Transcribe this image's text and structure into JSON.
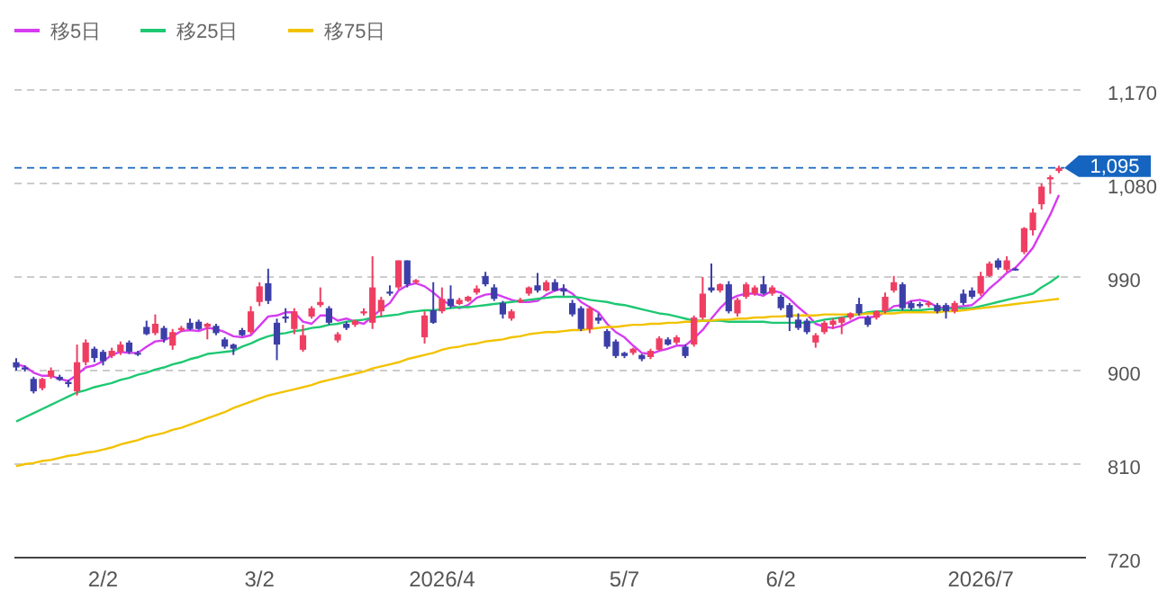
{
  "chart_data": {
    "type": "candlestick",
    "categories": [
      null,
      null,
      null,
      null,
      null,
      null,
      null,
      null,
      null,
      null,
      "2/2",
      null,
      null,
      null,
      null,
      null,
      null,
      null,
      null,
      null,
      null,
      null,
      null,
      null,
      null,
      null,
      null,
      null,
      "3/2",
      null,
      null,
      null,
      null,
      null,
      null,
      null,
      null,
      null,
      null,
      null,
      null,
      null,
      null,
      null,
      null,
      null,
      null,
      null,
      null,
      "2026/4",
      null,
      null,
      null,
      null,
      null,
      null,
      null,
      null,
      null,
      null,
      null,
      null,
      null,
      null,
      null,
      null,
      null,
      null,
      null,
      null,
      "5/7",
      null,
      null,
      null,
      null,
      null,
      null,
      null,
      null,
      null,
      null,
      null,
      null,
      null,
      null,
      null,
      null,
      null,
      "6/2",
      null,
      null,
      null,
      null,
      null,
      null,
      null,
      null,
      null,
      null,
      null,
      null,
      null,
      null,
      null,
      null,
      null,
      null,
      null,
      null,
      null,
      null,
      "2026/7",
      null,
      null,
      null,
      null,
      null,
      null,
      null,
      null,
      null
    ],
    "series": [
      {
        "colors": [
          "#3d3fa8",
          "#3d3fa8",
          "#3d3fa8",
          "#ef3e62",
          "#ef3e62",
          "#3d3fa8",
          "#3d3fa8",
          "#ef3e62",
          "#ef3e62",
          "#3d3fa8",
          "#3d3fa8",
          "#ef3e62",
          "#ef3e62",
          "#3d3fa8",
          "#3d3fa8",
          "#3d3fa8",
          "#ef3e62",
          "#3d3fa8",
          "#ef3e62",
          "#ef3e62",
          "#3d3fa8",
          "#3d3fa8",
          "#ef3e62",
          "#3d3fa8",
          "#3d3fa8",
          "#3d3fa8",
          "#3d3fa8",
          "#ef3e62",
          "#ef3e62",
          "#3d3fa8",
          "#3d3fa8",
          "#3d3fa8",
          "#ef3e62",
          "#ef3e62",
          "#ef3e62",
          "#ef3e62",
          "#3d3fa8",
          "#ef3e62",
          "#3d3fa8",
          "#ef3e62",
          "#ef3e62",
          "#ef3e62",
          "#ef3e62",
          "#3d3fa8",
          "#ef3e62",
          "#3d3fa8",
          "#ef3e62",
          "#ef3e62",
          "#3d3fa8",
          "#ef3e62",
          "#3d3fa8",
          "#ef3e62",
          "#ef3e62",
          "#ef3e62",
          "#3d3fa8",
          "#3d3fa8",
          "#3d3fa8",
          "#ef3e62",
          "#ef3e62",
          "#ef3e62",
          "#3d3fa8",
          "#ef3e62",
          "#3d3fa8",
          "#3d3fa8",
          "#3d3fa8",
          "#3d3fa8",
          "#ef3e62",
          "#3d3fa8",
          "#3d3fa8",
          "#3d3fa8",
          "#3d3fa8",
          "#ef3e62",
          "#3d3fa8",
          "#ef3e62",
          "#ef3e62",
          "#3d3fa8",
          "#ef3e62",
          "#3d3fa8",
          "#ef3e62",
          "#ef3e62",
          "#3d3fa8",
          "#ef3e62",
          "#3d3fa8",
          "#ef3e62",
          "#ef3e62",
          "#ef3e62",
          "#3d3fa8",
          "#ef3e62",
          "#3d3fa8",
          "#3d3fa8",
          "#3d3fa8",
          "#3d3fa8",
          "#ef3e62",
          "#ef3e62",
          "#ef3e62",
          "#ef3e62",
          "#ef3e62",
          "#3d3fa8",
          "#3d3fa8",
          "#ef3e62",
          "#ef3e62",
          "#ef3e62",
          "#3d3fa8",
          "#3d3fa8",
          "#3d3fa8",
          "#ef3e62",
          "#3d3fa8",
          "#3d3fa8",
          "#ef3e62",
          "#3d3fa8",
          "#3d3fa8",
          "#ef3e62",
          "#ef3e62",
          "#3d3fa8",
          "#ef3e62",
          "#3d3fa8",
          "#ef3e62",
          "#ef3e62",
          "#ef3e62",
          "#ef3e62",
          "#ef3e62"
        ],
        "ohlc": [
          [
            908,
            912,
            900,
            903
          ],
          [
            903,
            905,
            899,
            901
          ],
          [
            892,
            894,
            878,
            880
          ],
          [
            883,
            893,
            881,
            892
          ],
          [
            894,
            903,
            892,
            900
          ],
          [
            894,
            896,
            890,
            891
          ],
          [
            889,
            891,
            884,
            887
          ],
          [
            880,
            925,
            876,
            908
          ],
          [
            908,
            930,
            905,
            927
          ],
          [
            921,
            923,
            908,
            912
          ],
          [
            918,
            920,
            905,
            909
          ],
          [
            914,
            922,
            912,
            919
          ],
          [
            918,
            928,
            915,
            925
          ],
          [
            927,
            929,
            916,
            918
          ],
          [
            917,
            919,
            914,
            916
          ],
          [
            942,
            948,
            934,
            935
          ],
          [
            936,
            954,
            934,
            945
          ],
          [
            941,
            943,
            927,
            930
          ],
          [
            924,
            940,
            920,
            937
          ],
          [
            939,
            943,
            937,
            941
          ],
          [
            946,
            950,
            939,
            940
          ],
          [
            947,
            949,
            939,
            940
          ],
          [
            942,
            946,
            930,
            945
          ],
          [
            943,
            945,
            934,
            936
          ],
          [
            930,
            932,
            921,
            923
          ],
          [
            925,
            926,
            915,
            921
          ],
          [
            939,
            941,
            933,
            934
          ],
          [
            937,
            962,
            935,
            957
          ],
          [
            966,
            985,
            962,
            981
          ],
          [
            984,
            998,
            964,
            967
          ],
          [
            946,
            950,
            910,
            925
          ],
          [
            952,
            960,
            946,
            950
          ],
          [
            940,
            960,
            935,
            957
          ],
          [
            920,
            944,
            918,
            934
          ],
          [
            952,
            962,
            950,
            960
          ],
          [
            963,
            980,
            961,
            966
          ],
          [
            960,
            962,
            944,
            946
          ],
          [
            929,
            937,
            927,
            935
          ],
          [
            945,
            947,
            939,
            941
          ],
          [
            944,
            949,
            942,
            948
          ],
          [
            955,
            960,
            953,
            957
          ],
          [
            946,
            1010,
            940,
            980
          ],
          [
            957,
            971,
            952,
            968
          ],
          [
            976,
            982,
            972,
            974
          ],
          [
            980,
            1006,
            978,
            1006
          ],
          [
            1006,
            1006,
            980,
            983
          ],
          [
            985,
            988,
            983,
            987
          ],
          [
            932,
            957,
            926,
            953
          ],
          [
            958,
            985,
            945,
            946
          ],
          [
            957,
            980,
            955,
            969
          ],
          [
            969,
            982,
            960,
            962
          ],
          [
            964,
            970,
            963,
            968
          ],
          [
            967,
            972,
            966,
            971
          ],
          [
            975,
            982,
            973,
            979
          ],
          [
            991,
            995,
            981,
            983
          ],
          [
            980,
            983,
            967,
            969
          ],
          [
            965,
            967,
            950,
            954
          ],
          [
            950,
            959,
            948,
            957
          ],
          [
            966,
            970,
            965,
            968
          ],
          [
            974,
            981,
            972,
            980
          ],
          [
            982,
            994,
            975,
            977
          ],
          [
            977,
            987,
            976,
            985
          ],
          [
            985,
            988,
            976,
            977
          ],
          [
            979,
            983,
            972,
            976
          ],
          [
            965,
            968,
            952,
            954
          ],
          [
            960,
            962,
            938,
            940
          ],
          [
            940,
            962,
            936,
            960
          ],
          [
            951,
            955,
            945,
            948
          ],
          [
            938,
            940,
            921,
            923
          ],
          [
            928,
            930,
            912,
            914
          ],
          [
            917,
            918,
            912,
            914
          ],
          [
            917,
            922,
            915,
            921
          ],
          [
            915,
            916,
            909,
            911
          ],
          [
            913,
            921,
            911,
            919
          ],
          [
            920,
            933,
            919,
            931
          ],
          [
            930,
            932,
            924,
            925
          ],
          [
            927,
            934,
            925,
            932
          ],
          [
            923,
            925,
            912,
            914
          ],
          [
            925,
            953,
            923,
            951
          ],
          [
            951,
            990,
            949,
            974
          ],
          [
            980,
            1003,
            975,
            977
          ],
          [
            977,
            984,
            975,
            983
          ],
          [
            983,
            986,
            955,
            957
          ],
          [
            955,
            970,
            952,
            968
          ],
          [
            971,
            985,
            969,
            983
          ],
          [
            974,
            982,
            972,
            980
          ],
          [
            983,
            991,
            973,
            974
          ],
          [
            974,
            982,
            972,
            980
          ],
          [
            971,
            973,
            958,
            960
          ],
          [
            963,
            965,
            938,
            951
          ],
          [
            949,
            955,
            939,
            941
          ],
          [
            948,
            950,
            935,
            937
          ],
          [
            927,
            936,
            922,
            934
          ],
          [
            937,
            948,
            935,
            946
          ],
          [
            944,
            950,
            940,
            948
          ],
          [
            946,
            952,
            935,
            951
          ],
          [
            951,
            956,
            949,
            955
          ],
          [
            964,
            970,
            953,
            955
          ],
          [
            951,
            953,
            942,
            944
          ],
          [
            951,
            958,
            949,
            957
          ],
          [
            957,
            975,
            955,
            971
          ],
          [
            977,
            991,
            975,
            985
          ],
          [
            983,
            985,
            958,
            960
          ],
          [
            965,
            967,
            958,
            960
          ],
          [
            964,
            966,
            960,
            962
          ],
          [
            963,
            967,
            961,
            965
          ],
          [
            963,
            965,
            955,
            957
          ],
          [
            963,
            965,
            950,
            957
          ],
          [
            957,
            967,
            955,
            965
          ],
          [
            974,
            978,
            963,
            965
          ],
          [
            977,
            980,
            969,
            971
          ],
          [
            974,
            995,
            972,
            991
          ],
          [
            991,
            1005,
            990,
            1003
          ],
          [
            1006,
            1008,
            997,
            999
          ],
          [
            997,
            1010,
            995,
            1006
          ],
          [
            998,
            999,
            996,
            997
          ],
          [
            1014,
            1038,
            1012,
            1037
          ],
          [
            1035,
            1056,
            1030,
            1052
          ],
          [
            1060,
            1080,
            1055,
            1077
          ],
          [
            1084,
            1088,
            1070,
            1086
          ],
          [
            1092,
            1097,
            1090,
            1095
          ]
        ]
      },
      {
        "type": "line",
        "name": "移5日",
        "color": "#d63cf0",
        "values": [
          906,
          904,
          898,
          895,
          895,
          892,
          890,
          896,
          903,
          905,
          909,
          915,
          918,
          917,
          917,
          923,
          928,
          929,
          933,
          938,
          939,
          938,
          941,
          940,
          937,
          933,
          932,
          934,
          943,
          952,
          953,
          956,
          956,
          947,
          945,
          953,
          953,
          948,
          950,
          947,
          945,
          952,
          959,
          965,
          977,
          982,
          984,
          981,
          975,
          968,
          963,
          960,
          963,
          970,
          973,
          974,
          971,
          968,
          966,
          966,
          967,
          973,
          977,
          979,
          974,
          966,
          961,
          956,
          945,
          937,
          932,
          924,
          917,
          916,
          919,
          921,
          924,
          924,
          931,
          939,
          950,
          960,
          968,
          972,
          974,
          974,
          972,
          977,
          975,
          969,
          961,
          954,
          945,
          942,
          941,
          943,
          947,
          951,
          951,
          952,
          956,
          962,
          963,
          967,
          968,
          966,
          961,
          960,
          961,
          962,
          963,
          970,
          979,
          986,
          994,
          999,
          1008,
          1018,
          1034,
          1050,
          1069
        ]
      },
      {
        "type": "line",
        "name": "移25日",
        "color": "#1ec872",
        "values": [
          851,
          855,
          859,
          863,
          867,
          871,
          875,
          879,
          881,
          884,
          886,
          888,
          891,
          893,
          896,
          898,
          901,
          903,
          906,
          908,
          911,
          913,
          916,
          917,
          918,
          919,
          923,
          926,
          930,
          933,
          935,
          936,
          938,
          939,
          941,
          942,
          944,
          945,
          947,
          948,
          949,
          951,
          952,
          953,
          954,
          956,
          957,
          958,
          958,
          959,
          960,
          961,
          961,
          962,
          963,
          964,
          965,
          966,
          967,
          968,
          969,
          970,
          971,
          971,
          971,
          970,
          968,
          967,
          966,
          964,
          963,
          961,
          959,
          957,
          955,
          954,
          952,
          950,
          948,
          948,
          948,
          948,
          947,
          947,
          947,
          947,
          947,
          946,
          946,
          946,
          946,
          946,
          947,
          949,
          950,
          951,
          953,
          954,
          956,
          957,
          957,
          958,
          958,
          958,
          958,
          959,
          959,
          959,
          960,
          960,
          960,
          962,
          964,
          966,
          968,
          970,
          972,
          974,
          980,
          985,
          991
        ]
      },
      {
        "type": "line",
        "name": "移75日",
        "color": "#f2c200",
        "values": [
          808,
          810,
          811,
          813,
          814,
          816,
          818,
          819,
          821,
          822,
          824,
          826,
          829,
          831,
          833,
          836,
          838,
          840,
          843,
          845,
          848,
          851,
          854,
          857,
          860,
          864,
          867,
          870,
          873,
          876,
          878,
          880,
          882,
          884,
          886,
          889,
          891,
          893,
          895,
          897,
          899,
          902,
          904,
          906,
          908,
          911,
          913,
          915,
          917,
          920,
          922,
          923,
          925,
          926,
          928,
          929,
          930,
          932,
          933,
          935,
          936,
          937,
          937,
          938,
          939,
          939,
          940,
          941,
          942,
          942,
          943,
          944,
          944,
          945,
          945,
          946,
          946,
          947,
          947,
          948,
          948,
          949,
          949,
          950,
          950,
          951,
          951,
          952,
          952,
          953,
          953,
          953,
          953,
          954,
          954,
          954,
          954,
          954,
          955,
          955,
          955,
          955,
          956,
          956,
          956,
          956,
          956,
          957,
          957,
          958,
          959,
          960,
          961,
          962,
          963,
          964,
          965,
          966,
          967,
          968,
          969
        ]
      }
    ],
    "ylim": [
      720,
      1170
    ],
    "yticks": [
      720,
      810,
      900,
      990,
      {
        "value": 1080,
        "label": "1,080"
      },
      {
        "value": 1170,
        "label": "1,170"
      }
    ],
    "grid": "y",
    "legend": "top left",
    "ref_lines": [
      {
        "axis": "y",
        "value": 1095,
        "label": "1,095",
        "color": "#1565c0",
        "line_style": "dashed"
      }
    ]
  }
}
